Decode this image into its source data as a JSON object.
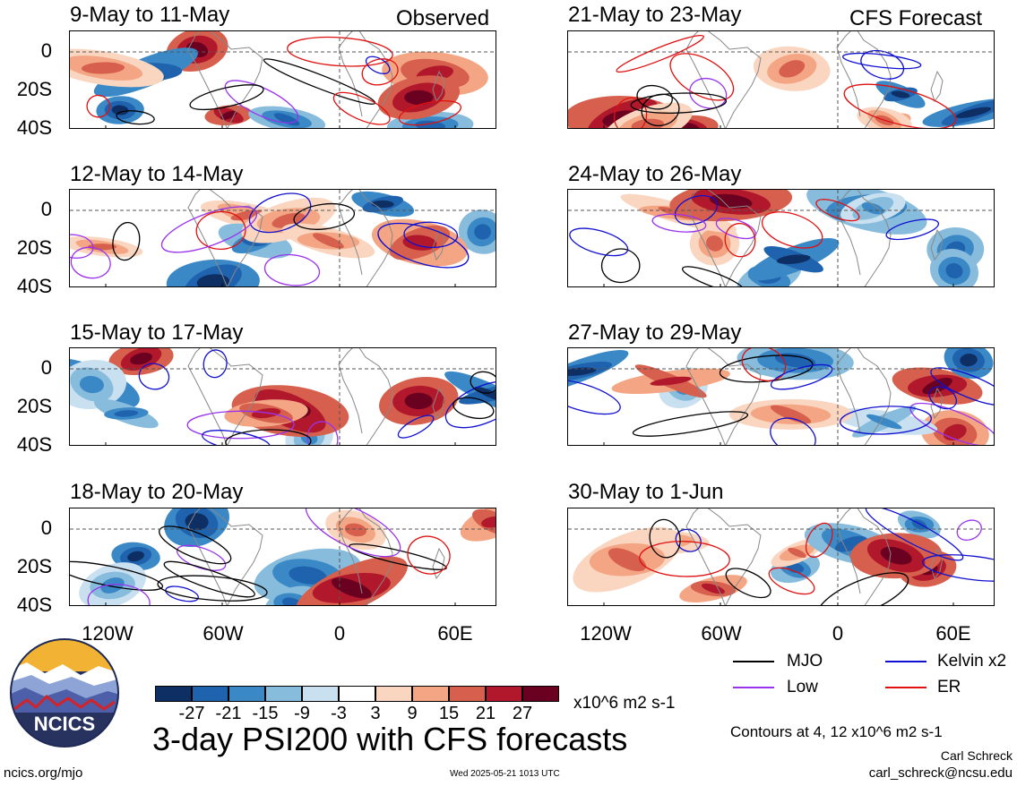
{
  "header": {
    "left_label": "Observed",
    "right_label": "CFS Forecast"
  },
  "panels_left": [
    {
      "title": "9-May to 11-May"
    },
    {
      "title": "12-May to 14-May"
    },
    {
      "title": "15-May to 17-May"
    },
    {
      "title": "18-May to 20-May"
    }
  ],
  "panels_right": [
    {
      "title": "21-May to 23-May"
    },
    {
      "title": "24-May to 26-May"
    },
    {
      "title": "27-May to 29-May"
    },
    {
      "title": "30-May to 1-Jun"
    }
  ],
  "lat_labels": [
    "0",
    "20S",
    "40S"
  ],
  "lon_labels": [
    "120W",
    "60W",
    "0",
    "60E"
  ],
  "colorbar": {
    "colors": [
      "#0e2f63",
      "#1f62ad",
      "#3a88c6",
      "#87bcdd",
      "#c8e0ef",
      "#ffffff",
      "#fad6c0",
      "#f4a684",
      "#d6604d",
      "#b2182b",
      "#6b0121"
    ],
    "labels": [
      "-27",
      "-21",
      "-15",
      "-9",
      "-3",
      "3",
      "9",
      "15",
      "21",
      "27"
    ],
    "units": "x10^6 m2 s-1"
  },
  "legend": {
    "items": [
      {
        "label": "MJO",
        "color": "#000000"
      },
      {
        "label": "Kelvin x2",
        "color": "#1010d0"
      },
      {
        "label": "Low",
        "color": "#9933ee"
      },
      {
        "label": "ER",
        "color": "#e01010"
      }
    ],
    "contours_note": "Contours at 4, 12 x10^6 m2 s-1"
  },
  "footer": {
    "main_title": "3-day PSI200 with CFS forecasts",
    "url": "ncics.org/mjo",
    "timestamp": "Wed 2025-05-21 1013 UTC",
    "author": "Carl Schreck",
    "email": "carl_schreck@ncsu.edu"
  },
  "logo": {
    "text": "NCICS"
  }
}
